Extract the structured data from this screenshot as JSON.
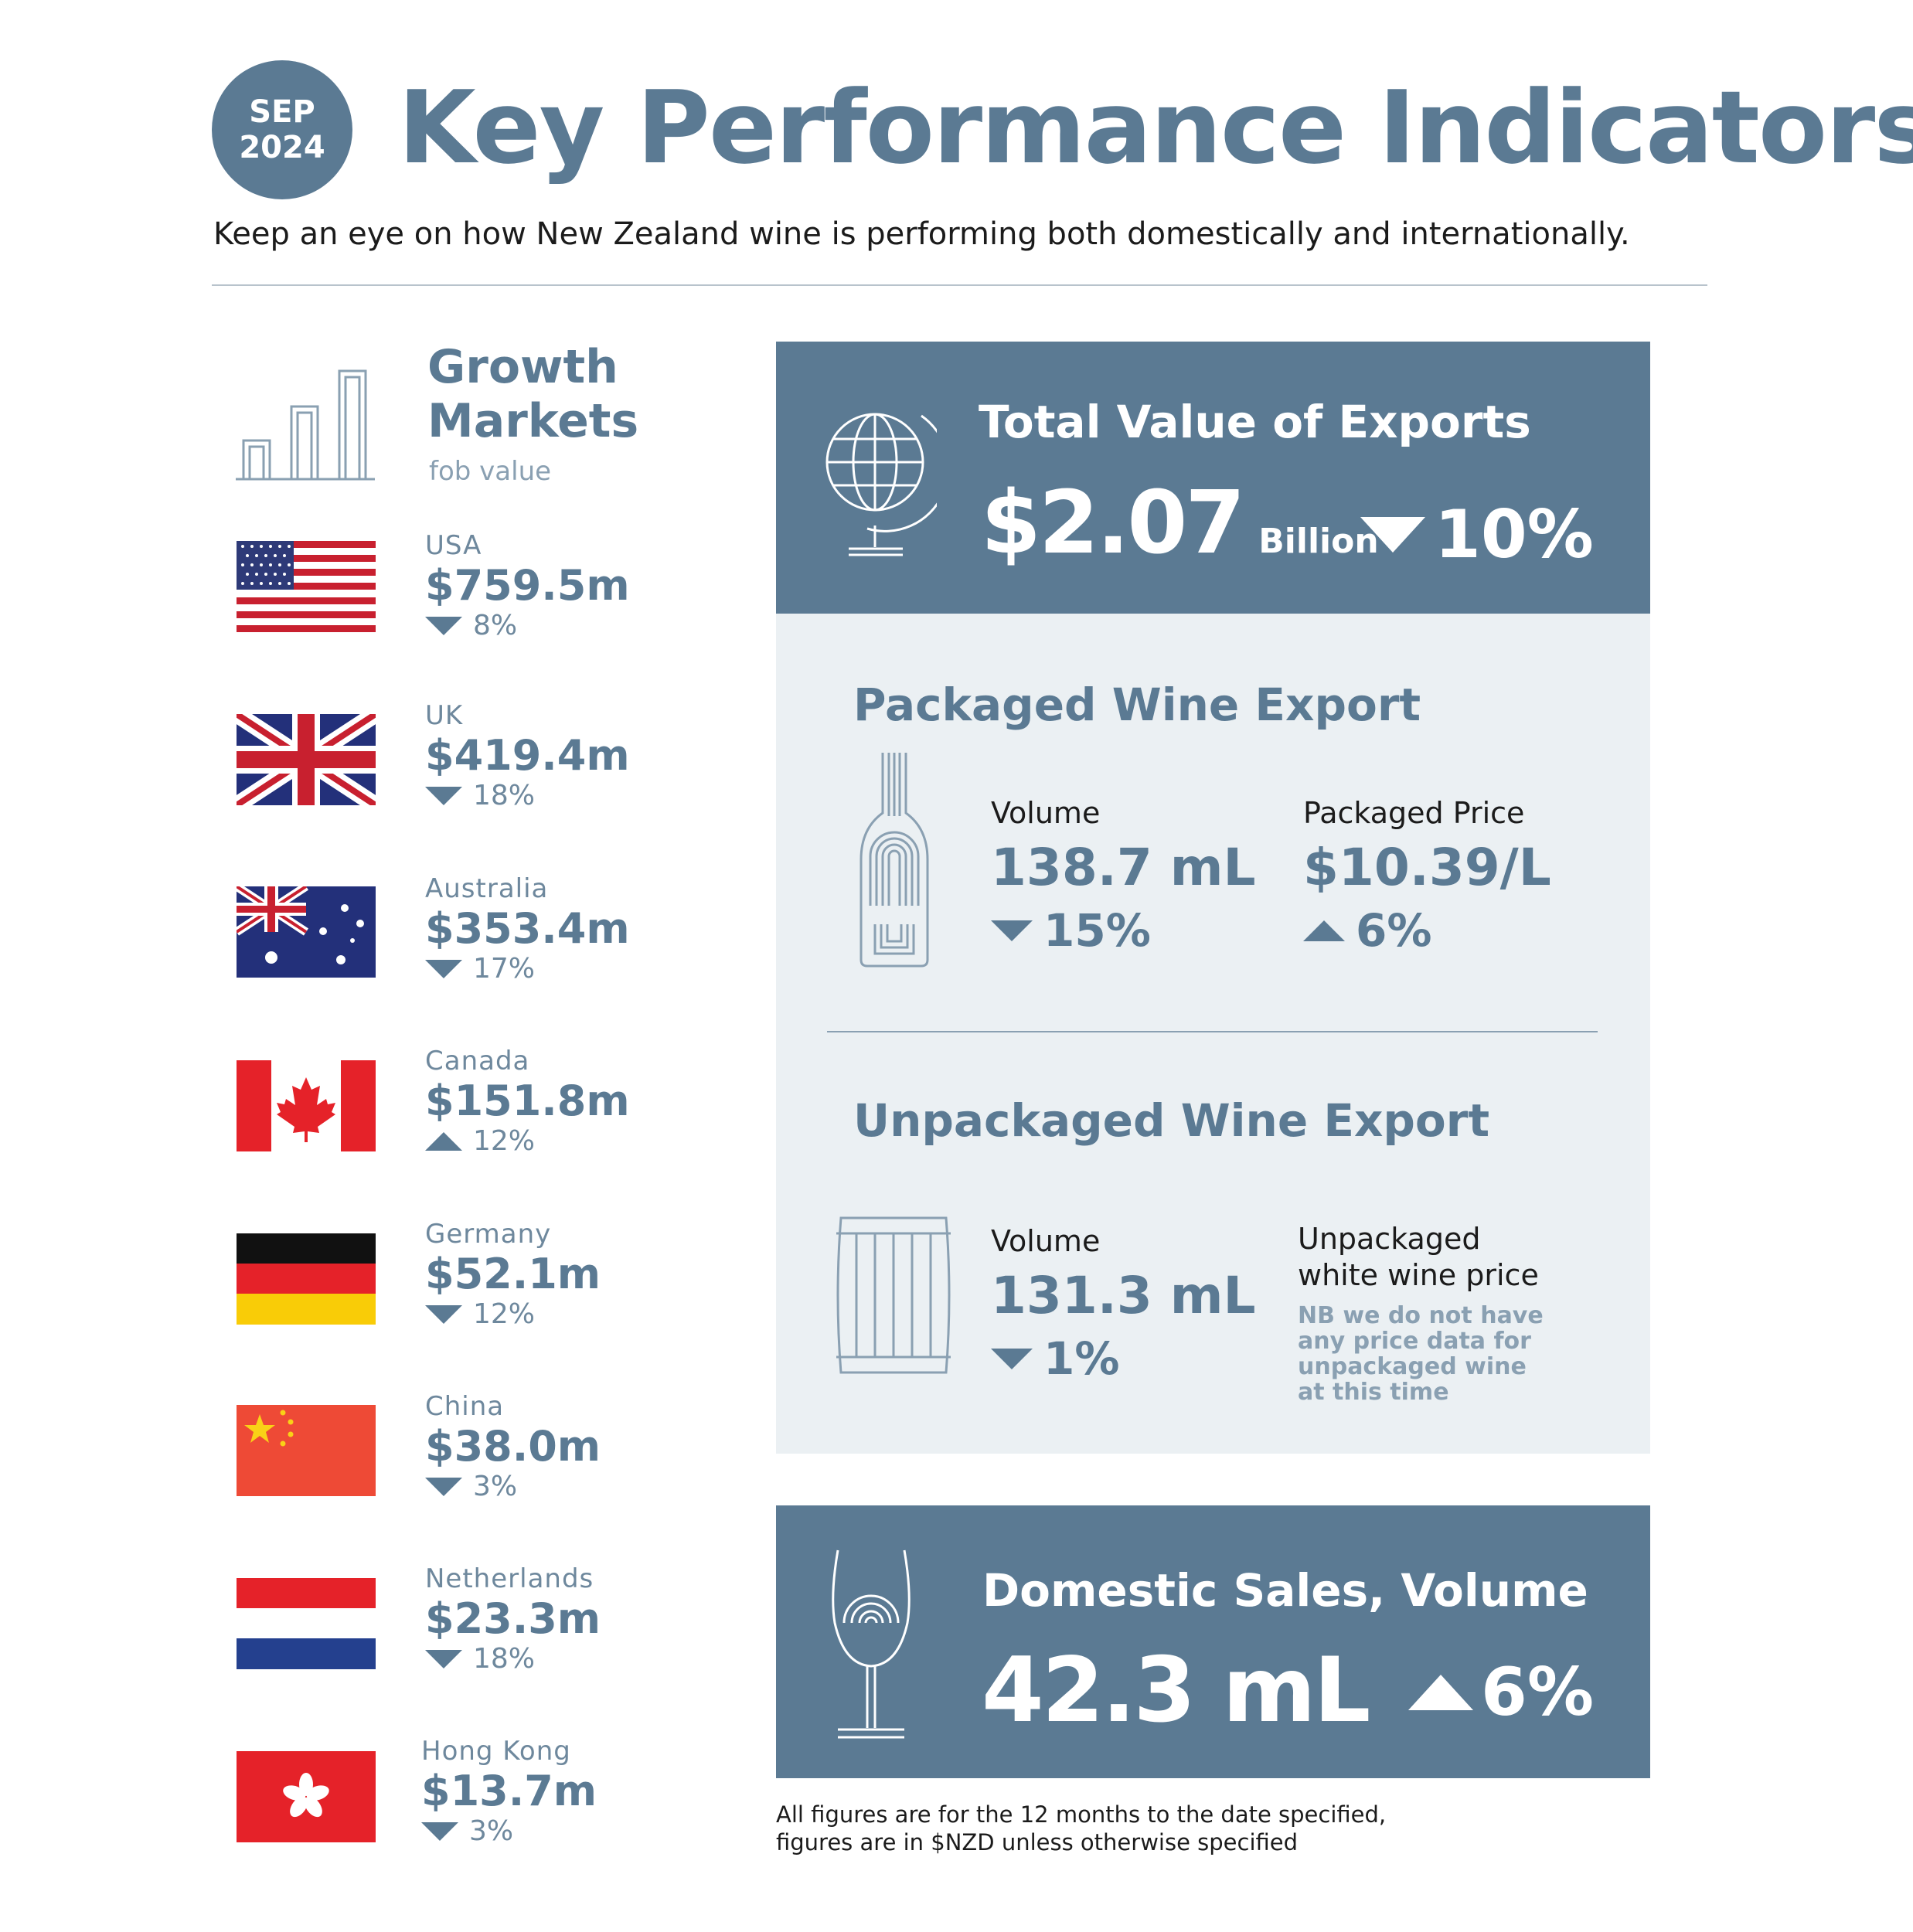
{
  "header": {
    "badge_month": "SEP",
    "badge_year": "2024",
    "title": "Key Performance Indicators",
    "subtitle": "Keep an eye on how New Zealand wine is performing both domestically and internationally."
  },
  "growth_markets": {
    "title_line1": "Growth",
    "title_line2": "Markets",
    "subtitle": "fob value",
    "markets": [
      {
        "name": "USA",
        "value": "$759.5m",
        "change": "8%",
        "direction": "down"
      },
      {
        "name": "UK",
        "value": "$419.4m",
        "change": "18%",
        "direction": "down"
      },
      {
        "name": "Australia",
        "value": "$353.4m",
        "change": "17%",
        "direction": "down"
      },
      {
        "name": "Canada",
        "value": "$151.8m",
        "change": "12%",
        "direction": "up"
      },
      {
        "name": "Germany",
        "value": "$52.1m",
        "change": "12%",
        "direction": "down"
      },
      {
        "name": "China",
        "value": "$38.0m",
        "change": "3%",
        "direction": "down"
      },
      {
        "name": "Netherlands",
        "value": "$23.3m",
        "change": "18%",
        "direction": "down"
      },
      {
        "name": "Hong Kong",
        "value": "$13.7m",
        "change": "3%",
        "direction": "down"
      }
    ]
  },
  "exports": {
    "title": "Total Value of Exports",
    "value": "$2.07",
    "unit": "Billion",
    "change": "10%",
    "direction": "down"
  },
  "packaged": {
    "title": "Packaged Wine Export",
    "volume_label": "Volume",
    "volume_value": "138.7 mL",
    "volume_change": "15%",
    "volume_direction": "down",
    "price_label": "Packaged Price",
    "price_value": "$10.39/L",
    "price_change": "6%",
    "price_direction": "up"
  },
  "unpackaged": {
    "title": "Unpackaged Wine Export",
    "volume_label": "Volume",
    "volume_value": "131.3 mL",
    "volume_change": "1%",
    "volume_direction": "down",
    "price_label_line1": "Unpackaged",
    "price_label_line2": "white wine price",
    "note_line1": "NB we do not have",
    "note_line2": "any price data for",
    "note_line3": "unpackaged wine",
    "note_line4": "at this time"
  },
  "domestic": {
    "title": "Domestic Sales, Volume",
    "value": "42.3 mL",
    "change": "6%",
    "direction": "up"
  },
  "footnote": {
    "line1": "All figures are for the 12 months to the date specified,",
    "line2": "figures are in $NZD unless otherwise specified"
  },
  "colors": {
    "brand": "#5b7a93",
    "panel_light": "#ebf0f3",
    "text_dark": "#1b1b1b"
  }
}
